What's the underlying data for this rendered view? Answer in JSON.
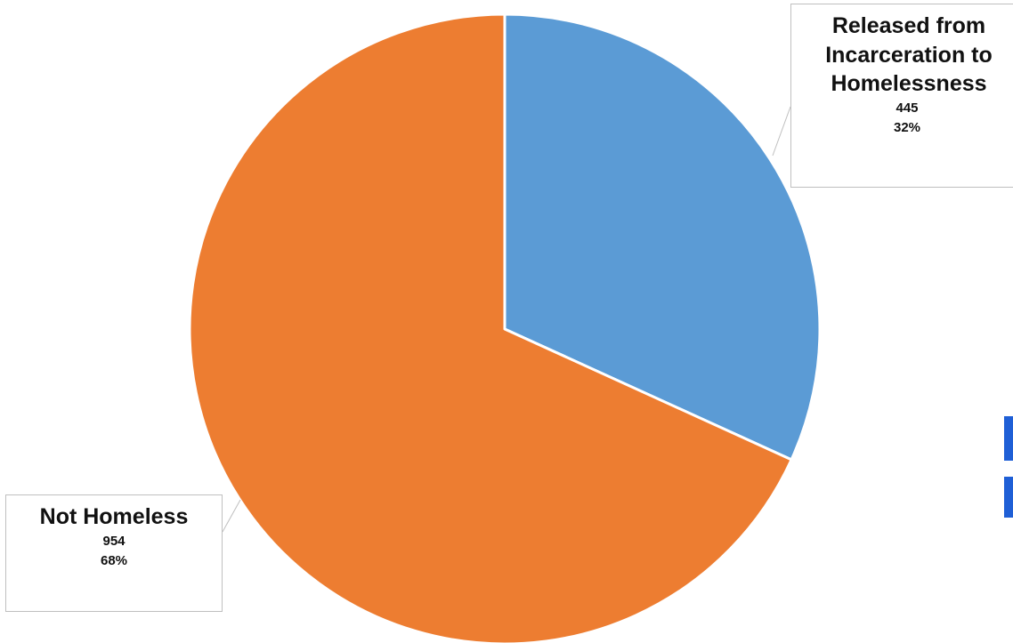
{
  "chart_data": {
    "type": "pie",
    "title": "",
    "slices": [
      {
        "label": "Released from Incarceration to Homelessness",
        "label_lines": [
          "Released from",
          "Incarceration to",
          "Homelessness"
        ],
        "value": 445,
        "value_label": "445",
        "percent_label": "32%",
        "color": "#5b9bd5"
      },
      {
        "label": "Not Homeless",
        "label_lines": [
          "Not Homeless"
        ],
        "value": 954,
        "value_label": "954",
        "percent_label": "68%",
        "color": "#ed7d31"
      }
    ],
    "start_angle": "12 o'clock",
    "direction": "clockwise",
    "legend": "none",
    "data_labels": "callouts"
  },
  "colors": {
    "slice_border": "#ffffff",
    "callout_border": "#bfbfbf",
    "text": "#111111",
    "clipped_accent": "#1f5fd6"
  }
}
